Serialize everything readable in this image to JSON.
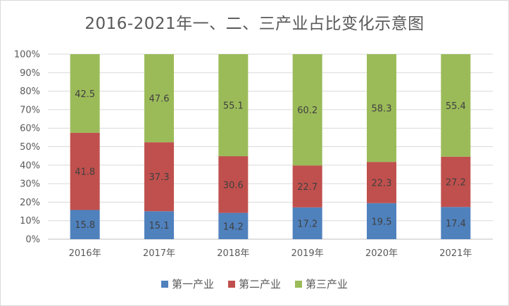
{
  "chart_data": {
    "type": "bar",
    "stacked": true,
    "percent_stacked": true,
    "title": "2016-2021年一、二、三产业占比变化示意图",
    "categories": [
      "2016年",
      "2017年",
      "2018年",
      "2019年",
      "2020年",
      "2021年"
    ],
    "series": [
      {
        "name": "第一产业",
        "color": "#4f81bd",
        "values": [
          15.8,
          15.1,
          14.2,
          17.2,
          19.5,
          17.4
        ]
      },
      {
        "name": "第二产业",
        "color": "#c0504d",
        "values": [
          41.8,
          37.3,
          30.6,
          22.7,
          22.3,
          27.2
        ]
      },
      {
        "name": "第三产业",
        "color": "#9bbb59",
        "values": [
          42.5,
          47.6,
          55.1,
          60.2,
          58.3,
          55.4
        ]
      }
    ],
    "yticks": [
      "0%",
      "10%",
      "20%",
      "30%",
      "40%",
      "50%",
      "60%",
      "70%",
      "80%",
      "90%",
      "100%"
    ],
    "ylim": [
      0,
      100
    ],
    "grid": true,
    "legend_position": "bottom",
    "data_labels": true
  }
}
